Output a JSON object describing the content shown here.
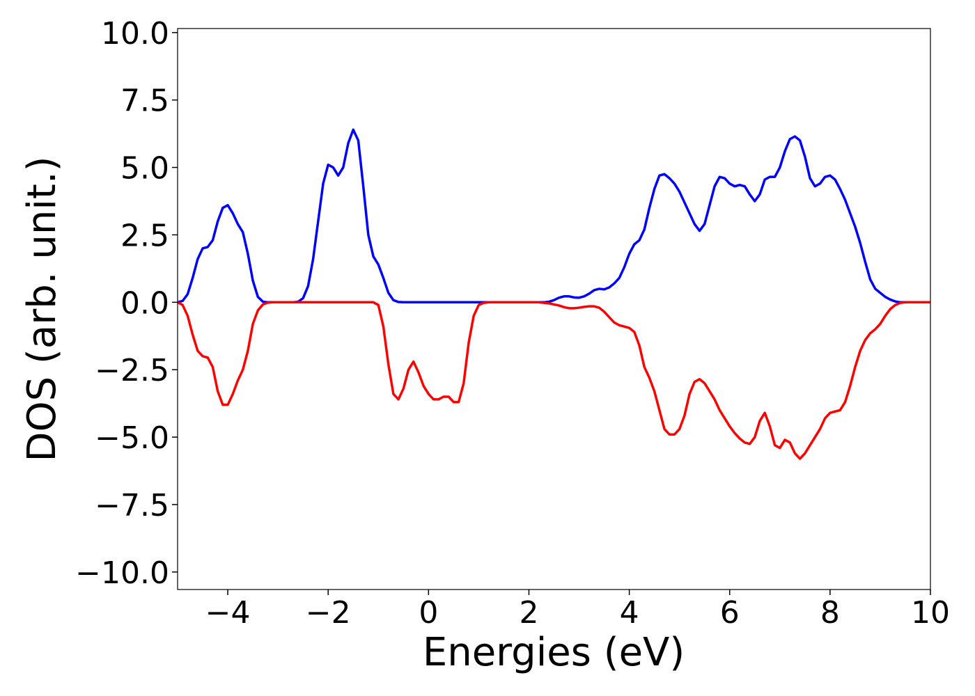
{
  "chart_data": {
    "type": "line",
    "x_label": "Energies (eV)",
    "y_label": "DOS (arb. unit.)",
    "x": [
      -5,
      -4.9,
      -4.8,
      -4.7,
      -4.6,
      -4.5,
      -4.4,
      -4.3,
      -4.2,
      -4.1,
      -4,
      -3.9,
      -3.8,
      -3.7,
      -3.6,
      -3.5,
      -3.4,
      -3.3,
      -3.2,
      -3.1,
      -3,
      -2.9,
      -2.8,
      -2.7,
      -2.6,
      -2.5,
      -2.4,
      -2.3,
      -2.2,
      -2.1,
      -2,
      -1.9,
      -1.8,
      -1.7,
      -1.6,
      -1.5,
      -1.4,
      -1.3,
      -1.2,
      -1.1,
      -1,
      -0.9,
      -0.8,
      -0.7,
      -0.6,
      -0.5,
      -0.4,
      -0.3,
      -0.2,
      -0.1,
      0,
      0.1,
      0.2,
      0.3,
      0.4,
      0.5,
      0.6,
      0.7,
      0.8,
      0.9,
      1,
      1.1,
      1.2,
      1.3,
      1.4,
      1.5,
      1.6,
      1.7,
      1.8,
      1.9,
      2,
      2.1,
      2.2,
      2.3,
      2.4,
      2.5,
      2.6,
      2.7,
      2.8,
      2.9,
      3,
      3.1,
      3.2,
      3.3,
      3.4,
      3.5,
      3.6,
      3.7,
      3.8,
      3.9,
      4,
      4.1,
      4.2,
      4.3,
      4.4,
      4.5,
      4.6,
      4.7,
      4.8,
      4.9,
      5,
      5.1,
      5.2,
      5.3,
      5.4,
      5.5,
      5.6,
      5.7,
      5.8,
      5.9,
      6,
      6.1,
      6.2,
      6.3,
      6.4,
      6.5,
      6.6,
      6.7,
      6.8,
      6.9,
      7,
      7.1,
      7.2,
      7.3,
      7.4,
      7.5,
      7.6,
      7.7,
      7.8,
      7.9,
      8,
      8.1,
      8.2,
      8.3,
      8.4,
      8.5,
      8.6,
      8.7,
      8.8,
      8.9,
      9,
      9.1,
      9.2,
      9.3,
      9.4,
      9.5,
      9.6,
      9.7,
      9.8,
      9.9,
      10
    ],
    "series": [
      {
        "color": "#0000ff",
        "values": [
          0,
          0.05,
          0.3,
          0.9,
          1.6,
          2.0,
          2.05,
          2.3,
          3.0,
          3.5,
          3.6,
          3.3,
          2.9,
          2.6,
          1.8,
          0.8,
          0.2,
          0.02,
          0,
          0,
          0,
          0,
          0,
          0,
          0.02,
          0.15,
          0.6,
          1.6,
          3.0,
          4.4,
          5.1,
          5.0,
          4.7,
          5.0,
          5.9,
          6.4,
          6.0,
          4.3,
          2.5,
          1.7,
          1.4,
          0.9,
          0.35,
          0.08,
          0.01,
          0,
          0,
          0,
          0,
          0,
          0,
          0,
          0,
          0,
          0,
          0,
          0,
          0,
          0,
          0,
          0,
          0,
          0,
          0,
          0,
          0,
          0,
          0,
          0,
          0,
          0,
          0,
          0,
          0,
          0.02,
          0.08,
          0.17,
          0.22,
          0.22,
          0.18,
          0.17,
          0.22,
          0.32,
          0.45,
          0.5,
          0.48,
          0.55,
          0.7,
          0.9,
          1.3,
          1.8,
          2.15,
          2.3,
          2.7,
          3.5,
          4.2,
          4.7,
          4.75,
          4.6,
          4.4,
          4.1,
          3.7,
          3.3,
          2.9,
          2.65,
          2.9,
          3.6,
          4.3,
          4.65,
          4.6,
          4.4,
          4.3,
          4.35,
          4.3,
          4.0,
          3.75,
          4.0,
          4.55,
          4.65,
          4.65,
          5.0,
          5.6,
          6.05,
          6.15,
          6.0,
          5.4,
          4.6,
          4.3,
          4.4,
          4.65,
          4.7,
          4.55,
          4.2,
          3.8,
          3.3,
          2.8,
          2.2,
          1.5,
          0.85,
          0.5,
          0.35,
          0.2,
          0.1,
          0.03,
          0,
          0,
          0,
          0,
          0,
          0,
          0
        ]
      },
      {
        "color": "#ff0000",
        "values": [
          0,
          -0.1,
          -0.5,
          -1.2,
          -1.8,
          -2.0,
          -2.05,
          -2.4,
          -3.3,
          -3.8,
          -3.8,
          -3.4,
          -2.9,
          -2.5,
          -1.8,
          -0.8,
          -0.3,
          -0.08,
          -0.01,
          0,
          0,
          0,
          0,
          0,
          0,
          0,
          0,
          0,
          0,
          0,
          0,
          0,
          0,
          0,
          0,
          0,
          0,
          0,
          0,
          0,
          -0.1,
          -0.9,
          -2.3,
          -3.4,
          -3.6,
          -3.2,
          -2.5,
          -2.2,
          -2.6,
          -3.1,
          -3.4,
          -3.6,
          -3.6,
          -3.5,
          -3.5,
          -3.7,
          -3.7,
          -3.0,
          -1.5,
          -0.5,
          -0.1,
          -0.02,
          0,
          0,
          0,
          0,
          0,
          0,
          0,
          0,
          0,
          0,
          0,
          -0.02,
          -0.04,
          -0.08,
          -0.12,
          -0.18,
          -0.22,
          -0.22,
          -0.2,
          -0.17,
          -0.15,
          -0.15,
          -0.2,
          -0.35,
          -0.55,
          -0.75,
          -0.85,
          -0.9,
          -0.95,
          -1.1,
          -1.6,
          -2.4,
          -2.8,
          -3.3,
          -4.0,
          -4.7,
          -4.9,
          -4.9,
          -4.7,
          -4.2,
          -3.4,
          -2.95,
          -2.85,
          -3.0,
          -3.3,
          -3.6,
          -4.0,
          -4.3,
          -4.6,
          -4.85,
          -5.05,
          -5.2,
          -5.25,
          -5.0,
          -4.4,
          -4.1,
          -4.6,
          -5.3,
          -5.4,
          -5.1,
          -5.2,
          -5.6,
          -5.8,
          -5.6,
          -5.3,
          -5.0,
          -4.7,
          -4.3,
          -4.1,
          -4.05,
          -4.0,
          -3.7,
          -3.1,
          -2.4,
          -1.8,
          -1.4,
          -1.15,
          -1.0,
          -0.8,
          -0.5,
          -0.25,
          -0.1,
          -0.02,
          0,
          0,
          0,
          0,
          0,
          0
        ]
      }
    ],
    "xlim": [
      -5,
      10
    ],
    "xticks": [
      {
        "value": -4,
        "label": "−4"
      },
      {
        "value": -2,
        "label": "−2"
      },
      0,
      2,
      4,
      6,
      8,
      10
    ],
    "ylim": [
      -10.65,
      10.15
    ],
    "yticks": [
      {
        "value": -10,
        "label": "−10.0"
      },
      {
        "value": -7.5,
        "label": "−7.5"
      },
      {
        "value": -5,
        "label": "−5.0"
      },
      {
        "value": -2.5,
        "label": "−2.5"
      },
      {
        "value": 0,
        "label": "0.0"
      },
      {
        "value": 2.5,
        "label": "2.5"
      },
      {
        "value": 5,
        "label": "5.0"
      },
      {
        "value": 7.5,
        "label": "7.5"
      },
      {
        "value": 10,
        "label": "10.0"
      }
    ],
    "grid": false
  }
}
